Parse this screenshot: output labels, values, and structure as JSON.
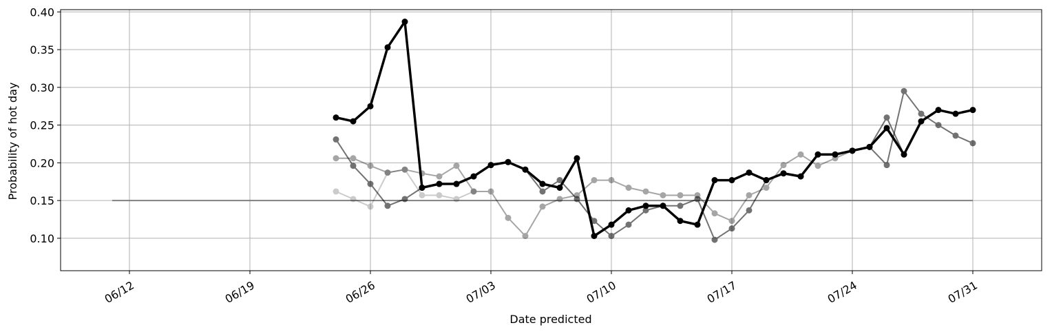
{
  "chart_data": {
    "type": "line",
    "xlabel": "Date predicted",
    "ylabel": "Probability of hot day",
    "x_type": "date",
    "xlim": [
      "2025-06-08",
      "2025-08-04"
    ],
    "ylim": [
      0.057,
      0.403
    ],
    "x_ticks": [
      "2025-06-12",
      "2025-06-19",
      "2025-06-26",
      "2025-07-03",
      "2025-07-10",
      "2025-07-17",
      "2025-07-24",
      "2025-07-31"
    ],
    "x_tick_labels": [
      "06/12",
      "06/19",
      "06/26",
      "07/03",
      "07/10",
      "07/17",
      "07/24",
      "07/31"
    ],
    "y_ticks": [
      0.1,
      0.15,
      0.2,
      0.25,
      0.3,
      0.35,
      0.4
    ],
    "y_tick_labels": [
      "0.10",
      "0.15",
      "0.20",
      "0.25",
      "0.30",
      "0.35",
      "0.40"
    ],
    "grid": true,
    "legend": false,
    "reference_line": {
      "x_start": "2025-06-11",
      "x_end": "2025-07-31",
      "y": 0.15,
      "color": "#808080"
    },
    "series": [
      {
        "color": "#000000",
        "opacity": 0.2,
        "line_width": 2,
        "marker_radius": 4.5,
        "points": [
          [
            "2025-06-24",
            0.162
          ],
          [
            "2025-06-25",
            0.152
          ],
          [
            "2025-06-26",
            0.142
          ],
          [
            "2025-06-27",
            0.187
          ],
          [
            "2025-06-28",
            0.191
          ],
          [
            "2025-06-29",
            0.157
          ],
          [
            "2025-06-30",
            0.157
          ],
          [
            "2025-07-01",
            0.152
          ],
          [
            "2025-07-02",
            0.162
          ]
        ]
      },
      {
        "color": "#000000",
        "opacity": 0.35,
        "line_width": 2,
        "marker_radius": 4.5,
        "points": [
          [
            "2025-06-24",
            0.206
          ],
          [
            "2025-06-25",
            0.206
          ],
          [
            "2025-06-26",
            0.196
          ],
          [
            "2025-06-27",
            0.187
          ],
          [
            "2025-06-28",
            0.191
          ],
          [
            "2025-06-29",
            0.186
          ],
          [
            "2025-06-30",
            0.182
          ],
          [
            "2025-07-01",
            0.196
          ],
          [
            "2025-07-02",
            0.162
          ],
          [
            "2025-07-03",
            0.162
          ],
          [
            "2025-07-04",
            0.127
          ],
          [
            "2025-07-05",
            0.103
          ],
          [
            "2025-07-06",
            0.142
          ],
          [
            "2025-07-07",
            0.152
          ],
          [
            "2025-07-08",
            0.157
          ],
          [
            "2025-07-09",
            0.177
          ],
          [
            "2025-07-10",
            0.177
          ],
          [
            "2025-07-11",
            0.167
          ],
          [
            "2025-07-12",
            0.162
          ],
          [
            "2025-07-13",
            0.157
          ],
          [
            "2025-07-14",
            0.157
          ],
          [
            "2025-07-15",
            0.157
          ],
          [
            "2025-07-16",
            0.133
          ],
          [
            "2025-07-17",
            0.123
          ],
          [
            "2025-07-18",
            0.157
          ],
          [
            "2025-07-19",
            0.167
          ],
          [
            "2025-07-20",
            0.197
          ],
          [
            "2025-07-21",
            0.211
          ],
          [
            "2025-07-22",
            0.196
          ],
          [
            "2025-07-23",
            0.206
          ],
          [
            "2025-07-24",
            0.216
          ]
        ]
      },
      {
        "color": "#000000",
        "opacity": 0.55,
        "line_width": 2,
        "marker_radius": 4.5,
        "points": [
          [
            "2025-06-24",
            0.231
          ],
          [
            "2025-06-25",
            0.196
          ],
          [
            "2025-06-26",
            0.172
          ],
          [
            "2025-06-27",
            0.143
          ],
          [
            "2025-06-28",
            0.152
          ],
          [
            "2025-06-29",
            0.167
          ],
          [
            "2025-06-30",
            0.172
          ],
          [
            "2025-07-01",
            0.172
          ],
          [
            "2025-07-02",
            0.182
          ],
          [
            "2025-07-03",
            0.197
          ],
          [
            "2025-07-04",
            0.201
          ],
          [
            "2025-07-05",
            0.191
          ],
          [
            "2025-07-06",
            0.162
          ],
          [
            "2025-07-07",
            0.177
          ],
          [
            "2025-07-08",
            0.152
          ],
          [
            "2025-07-09",
            0.123
          ],
          [
            "2025-07-10",
            0.103
          ],
          [
            "2025-07-11",
            0.118
          ],
          [
            "2025-07-12",
            0.137
          ],
          [
            "2025-07-13",
            0.143
          ],
          [
            "2025-07-14",
            0.143
          ],
          [
            "2025-07-15",
            0.152
          ],
          [
            "2025-07-16",
            0.098
          ],
          [
            "2025-07-17",
            0.113
          ],
          [
            "2025-07-18",
            0.137
          ],
          [
            "2025-07-19",
            0.177
          ],
          [
            "2025-07-20",
            0.186
          ],
          [
            "2025-07-21",
            0.182
          ],
          [
            "2025-07-22",
            0.211
          ],
          [
            "2025-07-23",
            0.211
          ],
          [
            "2025-07-24",
            0.216
          ],
          [
            "2025-07-25",
            0.221
          ],
          [
            "2025-07-26",
            0.26
          ],
          [
            "2025-07-27",
            0.211
          ]
        ]
      },
      {
        "color": "#000000",
        "opacity": 0.55,
        "line_width": 2,
        "marker_radius": 4.5,
        "points": [
          [
            "2025-07-24",
            0.216
          ],
          [
            "2025-07-25",
            0.221
          ],
          [
            "2025-07-26",
            0.197
          ],
          [
            "2025-07-27",
            0.295
          ],
          [
            "2025-07-28",
            0.265
          ],
          [
            "2025-07-29",
            0.25
          ],
          [
            "2025-07-30",
            0.236
          ],
          [
            "2025-07-31",
            0.226
          ]
        ]
      },
      {
        "color": "#000000",
        "opacity": 1.0,
        "line_width": 3.5,
        "marker_radius": 4.5,
        "points": [
          [
            "2025-06-24",
            0.26
          ],
          [
            "2025-06-25",
            0.255
          ],
          [
            "2025-06-26",
            0.275
          ],
          [
            "2025-06-27",
            0.353
          ],
          [
            "2025-06-28",
            0.387
          ],
          [
            "2025-06-29",
            0.167
          ],
          [
            "2025-06-30",
            0.172
          ],
          [
            "2025-07-01",
            0.172
          ],
          [
            "2025-07-02",
            0.182
          ],
          [
            "2025-07-03",
            0.197
          ],
          [
            "2025-07-04",
            0.201
          ],
          [
            "2025-07-05",
            0.191
          ],
          [
            "2025-07-06",
            0.172
          ],
          [
            "2025-07-07",
            0.167
          ],
          [
            "2025-07-08",
            0.206
          ],
          [
            "2025-07-09",
            0.103
          ],
          [
            "2025-07-10",
            0.118
          ],
          [
            "2025-07-11",
            0.137
          ],
          [
            "2025-07-12",
            0.143
          ],
          [
            "2025-07-13",
            0.143
          ],
          [
            "2025-07-14",
            0.123
          ],
          [
            "2025-07-15",
            0.118
          ],
          [
            "2025-07-16",
            0.177
          ],
          [
            "2025-07-17",
            0.177
          ],
          [
            "2025-07-18",
            0.187
          ],
          [
            "2025-07-19",
            0.177
          ],
          [
            "2025-07-20",
            0.186
          ],
          [
            "2025-07-21",
            0.182
          ],
          [
            "2025-07-22",
            0.211
          ],
          [
            "2025-07-23",
            0.211
          ],
          [
            "2025-07-24",
            0.216
          ],
          [
            "2025-07-25",
            0.221
          ],
          [
            "2025-07-26",
            0.246
          ],
          [
            "2025-07-27",
            0.211
          ],
          [
            "2025-07-28",
            0.255
          ],
          [
            "2025-07-29",
            0.27
          ],
          [
            "2025-07-30",
            0.265
          ],
          [
            "2025-07-31",
            0.27
          ]
        ]
      }
    ]
  }
}
